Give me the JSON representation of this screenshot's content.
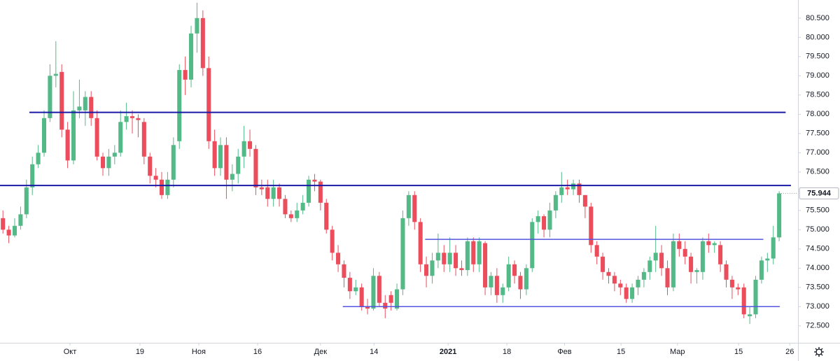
{
  "chart_data": {
    "type": "candlestick",
    "up_color": "#53b987",
    "down_color": "#eb4d5c",
    "open": [
      75.3,
      75.0,
      74.85,
      75.1,
      75.4,
      76.1,
      76.7,
      77.0,
      77.9,
      79.0,
      79.1,
      77.6,
      76.8,
      78.1,
      78.1,
      78.45,
      77.9,
      76.9,
      76.6,
      76.9,
      77.0,
      77.8,
      77.95,
      77.9,
      77.8,
      76.9,
      76.4,
      76.3,
      75.9,
      76.3,
      77.3,
      79.15,
      78.9,
      80.1,
      80.5,
      79.2,
      77.3,
      76.6,
      77.2,
      76.3,
      76.45,
      76.9,
      77.3,
      77.1,
      76.1,
      76.1,
      75.8,
      76.1,
      75.8,
      75.4,
      75.3,
      75.5,
      75.7,
      76.3,
      76.25,
      75.7,
      75.0,
      74.4,
      74.1,
      73.75,
      73.4,
      73.5,
      73.0,
      72.95,
      73.8,
      73.1,
      73.3,
      72.95,
      73.45,
      75.3,
      75.9,
      75.2,
      74.1,
      73.8,
      74.2,
      74.4,
      74.1,
      74.4,
      74.0,
      73.95,
      74.7,
      74.1,
      74.65,
      73.5,
      73.8,
      73.3,
      73.5,
      74.1,
      73.8,
      73.45,
      74.0,
      75.2,
      75.35,
      75.0,
      75.5,
      75.9,
      76.1,
      76.05,
      76.2,
      75.9,
      75.6,
      74.6,
      74.3,
      73.9,
      73.8,
      73.6,
      73.5,
      73.2,
      73.5,
      73.7,
      73.9,
      74.2,
      74.4,
      74.0,
      73.5,
      74.7,
      74.5,
      74.3,
      73.9,
      73.9,
      74.7,
      74.6,
      74.6,
      74.1,
      73.7,
      73.5,
      73.5,
      72.75,
      72.8,
      73.7,
      74.2,
      74.25,
      74.8
    ],
    "high": [
      75.5,
      75.1,
      75.3,
      75.6,
      76.3,
      76.9,
      77.2,
      78.1,
      79.3,
      79.9,
      79.3,
      77.8,
      78.6,
      78.9,
      78.6,
      78.6,
      78.1,
      77.0,
      77.1,
      77.2,
      78.1,
      78.3,
      78.1,
      78.0,
      77.9,
      77.0,
      76.6,
      76.5,
      76.5,
      77.4,
      79.3,
      79.5,
      80.3,
      80.9,
      80.7,
      79.5,
      77.6,
      77.4,
      77.4,
      76.7,
      77.1,
      77.7,
      77.6,
      77.2,
      76.3,
      76.3,
      76.3,
      76.2,
      75.9,
      75.5,
      75.7,
      75.9,
      76.4,
      76.45,
      76.3,
      75.8,
      75.1,
      74.6,
      74.2,
      73.9,
      73.7,
      73.6,
      73.2,
      74.0,
      73.9,
      73.3,
      73.4,
      73.6,
      75.5,
      76.0,
      76.0,
      75.3,
      74.3,
      74.4,
      74.9,
      74.6,
      74.8,
      74.6,
      74.2,
      74.8,
      74.8,
      74.8,
      74.7,
      73.9,
      74.0,
      73.6,
      74.3,
      74.2,
      73.9,
      74.1,
      75.3,
      75.5,
      75.4,
      75.7,
      76.0,
      76.5,
      76.3,
      76.3,
      76.3,
      75.9,
      75.7,
      74.7,
      74.4,
      74.0,
      73.9,
      73.7,
      73.6,
      73.6,
      73.8,
      74.0,
      74.3,
      75.1,
      74.6,
      74.2,
      74.9,
      74.9,
      74.7,
      74.4,
      74.0,
      74.8,
      74.9,
      74.7,
      74.7,
      74.2,
      73.8,
      73.6,
      73.6,
      73.0,
      73.8,
      74.3,
      74.4,
      75.1,
      76.0
    ],
    "low": [
      74.9,
      74.65,
      74.8,
      75.0,
      75.3,
      75.9,
      76.6,
      76.9,
      77.8,
      78.7,
      77.4,
      76.6,
      76.7,
      77.9,
      77.7,
      77.7,
      76.8,
      76.4,
      76.4,
      76.7,
      76.9,
      77.6,
      77.5,
      77.4,
      76.7,
      76.2,
      76.1,
      75.8,
      75.8,
      76.1,
      77.1,
      78.5,
      78.7,
      79.6,
      79.0,
      77.1,
      76.4,
      76.4,
      75.8,
      76.0,
      76.2,
      76.6,
      76.9,
      75.9,
      75.9,
      75.6,
      75.6,
      75.6,
      75.3,
      75.2,
      75.2,
      75.4,
      75.6,
      76.0,
      75.5,
      74.9,
      74.2,
      73.9,
      73.5,
      73.2,
      73.3,
      72.9,
      72.8,
      72.9,
      73.0,
      72.7,
      72.9,
      72.9,
      73.3,
      75.1,
      75.0,
      73.9,
      73.5,
      73.6,
      74.0,
      73.9,
      73.9,
      73.8,
      73.8,
      73.8,
      73.9,
      73.9,
      73.3,
      73.3,
      73.1,
      73.1,
      73.4,
      73.6,
      73.2,
      73.3,
      73.9,
      74.9,
      74.8,
      74.8,
      75.3,
      75.7,
      75.9,
      75.9,
      75.7,
      75.3,
      74.4,
      74.1,
      73.7,
      73.6,
      73.4,
      73.3,
      73.1,
      73.1,
      73.3,
      73.5,
      73.7,
      73.9,
      73.8,
      73.3,
      73.4,
      74.3,
      74.1,
      73.6,
      73.6,
      73.7,
      74.4,
      74.4,
      73.9,
      73.5,
      73.2,
      73.3,
      72.7,
      72.55,
      72.7,
      73.6,
      73.9,
      74.1,
      74.7
    ],
    "close": [
      75.0,
      74.85,
      75.1,
      75.4,
      76.1,
      76.7,
      77.0,
      77.9,
      79.0,
      79.05,
      77.6,
      76.8,
      78.1,
      78.2,
      78.45,
      77.9,
      76.9,
      76.6,
      76.9,
      77.0,
      77.8,
      77.95,
      77.9,
      77.85,
      76.9,
      76.4,
      76.3,
      75.9,
      76.3,
      77.2,
      79.15,
      78.9,
      80.1,
      80.5,
      79.2,
      77.3,
      76.6,
      77.2,
      76.3,
      76.45,
      76.9,
      77.3,
      77.1,
      76.1,
      76.05,
      75.8,
      76.1,
      75.8,
      75.4,
      75.3,
      75.5,
      75.7,
      76.3,
      76.25,
      75.7,
      75.0,
      74.4,
      74.1,
      73.75,
      73.4,
      73.5,
      73.0,
      72.95,
      73.8,
      73.1,
      72.95,
      73.1,
      73.45,
      75.3,
      75.9,
      75.2,
      74.1,
      73.8,
      74.2,
      74.4,
      74.1,
      74.4,
      74.0,
      73.95,
      74.7,
      74.1,
      74.7,
      73.5,
      73.8,
      73.3,
      73.5,
      74.1,
      73.8,
      73.45,
      74.0,
      75.2,
      75.35,
      75.0,
      75.5,
      75.9,
      76.1,
      76.05,
      76.2,
      75.9,
      75.6,
      74.6,
      74.3,
      73.9,
      73.8,
      73.6,
      73.5,
      73.2,
      73.5,
      73.7,
      73.9,
      74.2,
      74.4,
      74.0,
      73.5,
      74.7,
      74.5,
      74.3,
      73.9,
      73.95,
      74.7,
      74.6,
      74.65,
      74.1,
      73.7,
      73.5,
      73.45,
      72.8,
      72.8,
      73.7,
      74.2,
      74.25,
      74.8,
      75.944
    ],
    "hlines": [
      {
        "value": 78.05,
        "from": 4.5,
        "to": 133.1,
        "color": "#1a1aa6"
      },
      {
        "value": 76.15,
        "from": -0.5,
        "to": 134.0,
        "color": "#1a1aa6"
      },
      {
        "value": 74.75,
        "from": 71.8,
        "to": 129.3,
        "color": "#5555e0"
      },
      {
        "value": 73.0,
        "from": 57.8,
        "to": 132.1,
        "color": "#5555e0"
      }
    ],
    "xlim": [
      -0.5,
      135.2
    ],
    "ylim": [
      72.06,
      80.97
    ],
    "xticks": [
      {
        "value": 11.4,
        "label": "Окт"
      },
      {
        "value": 23.3,
        "label": "19"
      },
      {
        "value": 33.3,
        "label": "Ноя"
      },
      {
        "value": 43.3,
        "label": "16"
      },
      {
        "value": 54.0,
        "label": "Дек"
      },
      {
        "value": 63.1,
        "label": "14"
      },
      {
        "value": 75.7,
        "label": "2021"
      },
      {
        "value": 85.7,
        "label": "18"
      },
      {
        "value": 95.5,
        "label": "Фев"
      },
      {
        "value": 105.1,
        "label": "15"
      },
      {
        "value": 114.7,
        "label": "Мар"
      },
      {
        "value": 125.1,
        "label": "15"
      },
      {
        "value": 133.8,
        "label": "26"
      }
    ],
    "yticks": [
      {
        "value": 72.5,
        "label": "72.500"
      },
      {
        "value": 73.0,
        "label": "73.000"
      },
      {
        "value": 73.5,
        "label": "73.500"
      },
      {
        "value": 74.0,
        "label": "74.000"
      },
      {
        "value": 74.5,
        "label": "74.500"
      },
      {
        "value": 75.0,
        "label": "75.000"
      },
      {
        "value": 75.5,
        "label": "75.500"
      },
      {
        "value": 76.0,
        "label": "76.000"
      },
      {
        "value": 76.5,
        "label": "76.500"
      },
      {
        "value": 77.0,
        "label": "77.000"
      },
      {
        "value": 77.5,
        "label": "77.500"
      },
      {
        "value": 78.0,
        "label": "78.000"
      },
      {
        "value": 78.5,
        "label": "78.500"
      },
      {
        "value": 79.0,
        "label": "79.000"
      },
      {
        "value": 79.5,
        "label": "79.500"
      },
      {
        "value": 80.0,
        "label": "80.000"
      },
      {
        "value": 80.5,
        "label": "80.500"
      }
    ]
  }
}
